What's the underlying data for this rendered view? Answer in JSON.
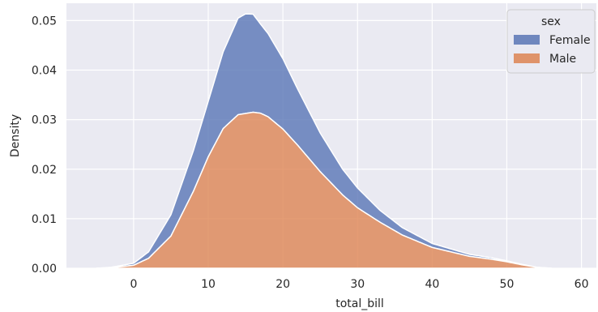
{
  "chart_data": {
    "type": "area",
    "stacked": true,
    "xlabel": "total_bill",
    "ylabel": "Density",
    "xlim": [
      -9,
      62
    ],
    "ylim": [
      0,
      0.0535
    ],
    "xticks": [
      0,
      10,
      20,
      30,
      40,
      50,
      60
    ],
    "yticks": [
      0.0,
      0.01,
      0.02,
      0.03,
      0.04,
      0.05
    ],
    "ytick_labels": [
      "0.00",
      "0.01",
      "0.02",
      "0.03",
      "0.04",
      "0.05"
    ],
    "grid": true,
    "background": "#eaeaf2",
    "legend": {
      "title": "sex",
      "placement": "top-right",
      "entries": [
        {
          "name": "Female",
          "color": "#5975b5"
        },
        {
          "name": "Male",
          "color": "#dd8452"
        }
      ]
    },
    "series": [
      {
        "name": "Male",
        "color": "#dd8452",
        "x": [
          -5,
          -3,
          0,
          2,
          5,
          8,
          10,
          12,
          14,
          16,
          17,
          18,
          20,
          22,
          25,
          28,
          30,
          33,
          36,
          40,
          45,
          48,
          50,
          52,
          54,
          56
        ],
        "y": [
          0.0,
          0.0001,
          0.0006,
          0.002,
          0.0065,
          0.0155,
          0.0225,
          0.0282,
          0.031,
          0.0315,
          0.0313,
          0.0306,
          0.0281,
          0.0248,
          0.0195,
          0.0148,
          0.0122,
          0.0093,
          0.0067,
          0.0042,
          0.0024,
          0.0018,
          0.0013,
          0.0007,
          0.0002,
          0.0
        ]
      },
      {
        "name": "Female",
        "color": "#5975b5",
        "x": [
          -5,
          -3,
          0,
          2,
          5,
          8,
          10,
          12,
          14,
          15,
          16,
          17,
          18,
          20,
          22,
          25,
          28,
          30,
          33,
          36,
          40,
          45,
          48,
          50,
          52,
          54,
          56
        ],
        "y": [
          0.0,
          0.0001,
          0.0004,
          0.0013,
          0.0043,
          0.0082,
          0.0112,
          0.0155,
          0.0195,
          0.0201,
          0.0198,
          0.018,
          0.0168,
          0.0142,
          0.0113,
          0.0078,
          0.0052,
          0.004,
          0.0024,
          0.0015,
          0.0008,
          0.0004,
          0.0003,
          0.0002,
          0.0001,
          0.0,
          0.0
        ]
      }
    ]
  }
}
